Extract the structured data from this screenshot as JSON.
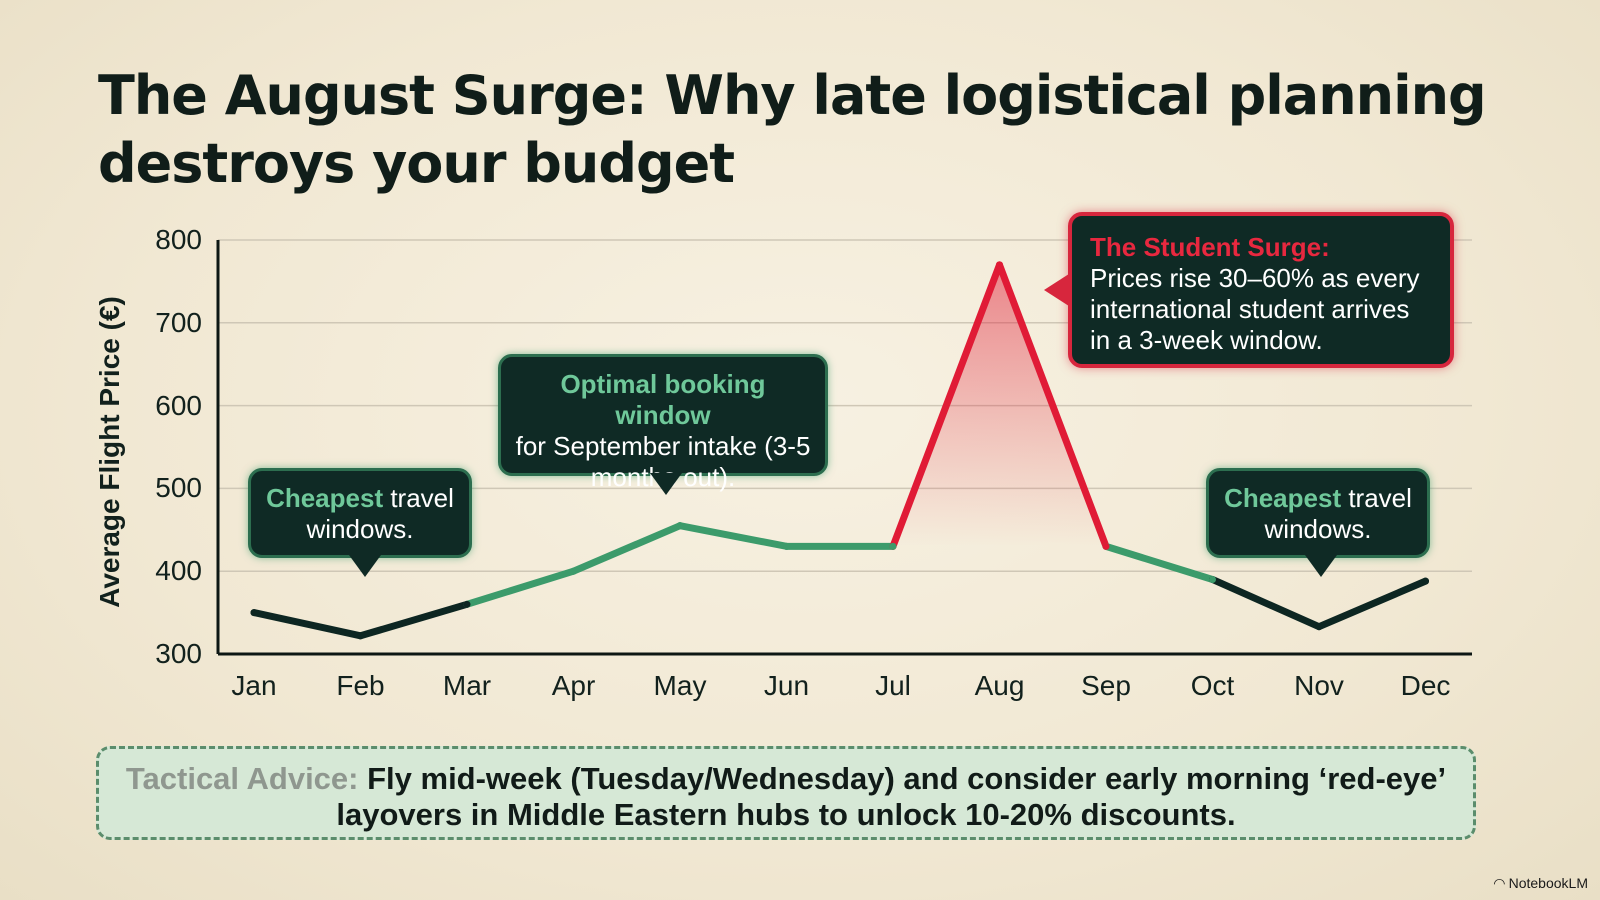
{
  "title": "The August Surge: Why late logistical planning destroys your budget",
  "chart_data": {
    "type": "line",
    "title": "The August Surge: Why late logistical planning destroys your budget",
    "xlabel": "",
    "ylabel": "Average Flight Price (€)",
    "categories": [
      "Jan",
      "Feb",
      "Mar",
      "Apr",
      "May",
      "Jun",
      "Jul",
      "Aug",
      "Sep",
      "Oct",
      "Nov",
      "Dec"
    ],
    "values": [
      350,
      322,
      360,
      400,
      455,
      430,
      430,
      770,
      430,
      390,
      333,
      388
    ],
    "yticks": [
      300,
      400,
      500,
      600,
      700,
      800
    ],
    "ylim": [
      300,
      800
    ],
    "grid": true,
    "colors": {
      "normal": "#0d2622",
      "moderate": "#3c9b6b",
      "surge": "#e01b36"
    },
    "annotations": [
      {
        "highlight": "Cheapest",
        "text": " travel windows.",
        "target": "Feb"
      },
      {
        "highlight": "Optimal booking window",
        "text": "for September intake (3-5 months out).",
        "target": "May"
      },
      {
        "highlight": "The Student Surge:",
        "text": "Prices rise 30–60% as every international student arrives in a 3-week window.",
        "target": "Aug"
      },
      {
        "highlight": "Cheapest",
        "text": " travel windows.",
        "target": "Nov"
      }
    ]
  },
  "advice": {
    "label": "Tactical Advice:",
    "text": " Fly mid-week (Tuesday/Wednesday) and consider early morning ‘red-eye’ layovers in Middle Eastern hubs to unlock 10-20% discounts."
  },
  "footer": {
    "brand": "NotebookLM"
  }
}
